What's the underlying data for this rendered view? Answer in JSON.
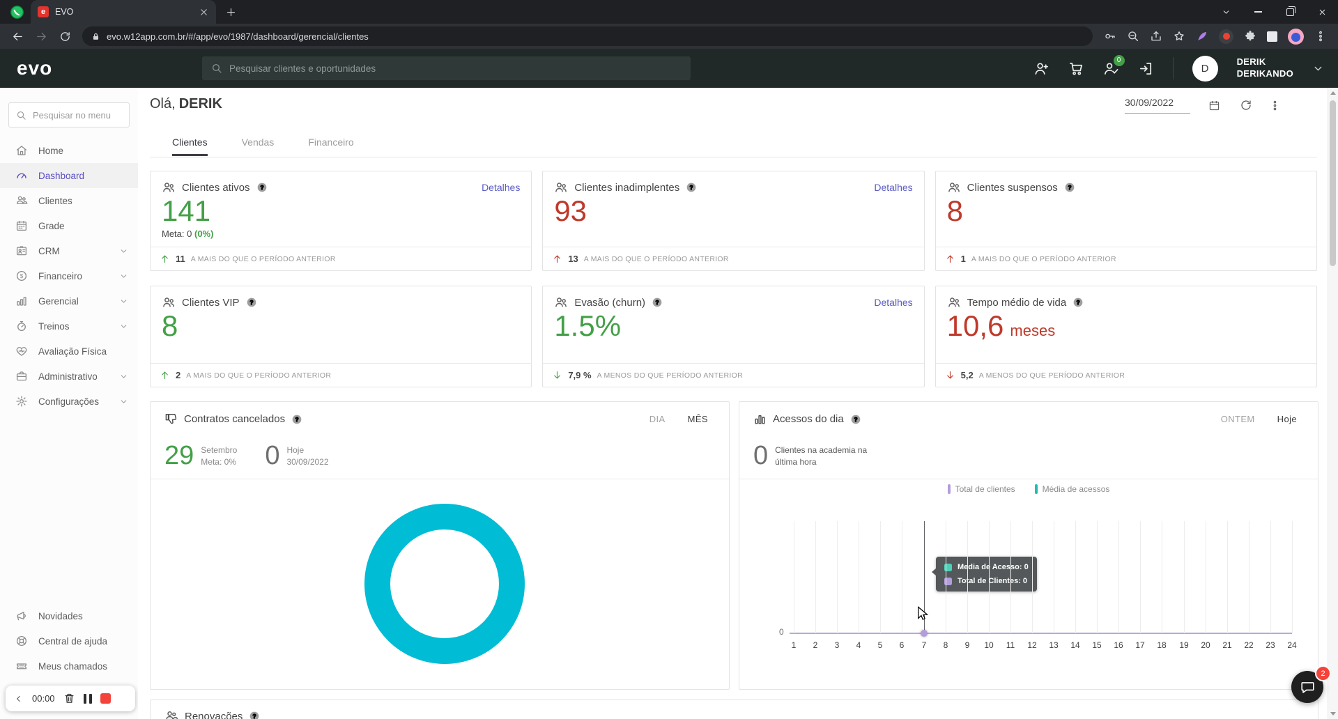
{
  "colors": {
    "accent_purple": "#5b4ec0",
    "link": "#5a5bc4",
    "green": "#43a047",
    "red": "#c0392b",
    "donut_teal": "#00bcd4",
    "series_purple": "#b39ddb",
    "series_teal": "#23bdb0",
    "header_dark": "#202927",
    "chrome_dark": "#1e2023"
  },
  "browser": {
    "tab_title": "EVO",
    "favicon_letter": "e",
    "url": "evo.w12app.com.br/#/app/evo/1987/dashboard/gerencial/clientes"
  },
  "app_header": {
    "logo": "evo",
    "search_placeholder": "Pesquisar clientes e oportunidades",
    "notifications_badge": "0",
    "user_initial": "D",
    "user_name_line1": "DERIK",
    "user_name_line2": "DERIKANDO"
  },
  "sidebar": {
    "search_placeholder": "Pesquisar no menu",
    "items": [
      {
        "label": "Home",
        "icon": "home",
        "chevron": false,
        "active": false
      },
      {
        "label": "Dashboard",
        "icon": "gauge",
        "chevron": false,
        "active": true
      },
      {
        "label": "Clientes",
        "icon": "people",
        "chevron": false,
        "active": false
      },
      {
        "label": "Grade",
        "icon": "calendar",
        "chevron": false,
        "active": false
      },
      {
        "label": "CRM",
        "icon": "idcard",
        "chevron": true,
        "active": false
      },
      {
        "label": "Financeiro",
        "icon": "dollar",
        "chevron": true,
        "active": false
      },
      {
        "label": "Gerencial",
        "icon": "bars",
        "chevron": true,
        "active": false
      },
      {
        "label": "Treinos",
        "icon": "stopwatch",
        "chevron": true,
        "active": false
      },
      {
        "label": "Avaliação Física",
        "icon": "heart",
        "chevron": false,
        "active": false
      },
      {
        "label": "Administrativo",
        "icon": "briefcase",
        "chevron": true,
        "active": false
      },
      {
        "label": "Configurações",
        "icon": "gear",
        "chevron": true,
        "active": false
      }
    ],
    "footer_items": [
      {
        "label": "Novidades",
        "icon": "megaphone"
      },
      {
        "label": "Central de ajuda",
        "icon": "lifebuoy"
      },
      {
        "label": "Meus chamados",
        "icon": "ticket"
      }
    ],
    "timer": {
      "time": "00:00"
    }
  },
  "main": {
    "greeting_prefix": "Olá,",
    "greeting_name": "DERIK",
    "date_value": "30/09/2022",
    "tabs": [
      {
        "label": "Clientes",
        "active": true
      },
      {
        "label": "Vendas",
        "active": false
      },
      {
        "label": "Financeiro",
        "active": false
      }
    ],
    "metric_cards": [
      {
        "title": "Clientes ativos",
        "link": "Detalhes",
        "value": "141",
        "value_color": "green",
        "meta_label": "Meta: 0",
        "meta_pct": "(0%)",
        "trend": {
          "dir": "up",
          "color": "green",
          "value": "11",
          "text": "A MAIS DO QUE O PERÍODO ANTERIOR"
        }
      },
      {
        "title": "Clientes inadimplentes",
        "link": "Detalhes",
        "value": "93",
        "value_color": "red",
        "trend": {
          "dir": "up",
          "color": "red",
          "value": "13",
          "text": "A MAIS DO QUE O PERÍODO ANTERIOR"
        }
      },
      {
        "title": "Clientes suspensos",
        "value": "8",
        "value_color": "red",
        "trend": {
          "dir": "up",
          "color": "red",
          "value": "1",
          "text": "A MAIS DO QUE O PERÍODO ANTERIOR"
        }
      },
      {
        "title": "Clientes VIP",
        "value": "8",
        "value_color": "green",
        "trend": {
          "dir": "up",
          "color": "green",
          "value": "2",
          "text": "A MAIS DO QUE O PERÍODO ANTERIOR"
        }
      },
      {
        "title": "Evasão (churn)",
        "link": "Detalhes",
        "value": "1.5%",
        "value_color": "green",
        "trend": {
          "dir": "down",
          "color": "green",
          "value": "7,9 %",
          "text": "A MENOS DO QUE PERÍODO ANTERIOR"
        }
      },
      {
        "title": "Tempo médio de vida",
        "value": "10,6",
        "value_suffix": "meses",
        "value_color": "red",
        "trend": {
          "dir": "down",
          "color": "red",
          "value": "5,2",
          "text": "A MENOS DO QUE PERÍODO ANTERIOR"
        }
      }
    ],
    "contratos": {
      "title": "Contratos cancelados",
      "toggle": [
        {
          "label": "DIA",
          "active": false
        },
        {
          "label": "MÊS",
          "active": true
        }
      ],
      "stats": [
        {
          "value": "29",
          "color": "green",
          "line1": "Setembro",
          "line2": "Meta: 0%"
        },
        {
          "value": "0",
          "color": "gray",
          "line1": "Hoje",
          "line2": "30/09/2022"
        }
      ]
    },
    "acessos": {
      "title": "Acessos do dia",
      "toggle": [
        {
          "label": "ONTEM",
          "active": false
        },
        {
          "label": "Hoje",
          "active": true
        }
      ],
      "stat_value": "0",
      "stat_caption_line1": "Clientes na academia na",
      "stat_caption_line2": "última hora",
      "legend": [
        {
          "label": "Total de clientes",
          "color": "#b39ddb"
        },
        {
          "label": "Média de acessos",
          "color": "#23bdb0"
        }
      ],
      "tooltip": [
        {
          "label": "Media de Acesso: 0",
          "color": "#4dd0b8"
        },
        {
          "label": "Total de Clientes: 0",
          "color": "#b39ddb"
        }
      ],
      "y_tick": "0",
      "x_ticks": [
        "1",
        "2",
        "3",
        "4",
        "5",
        "6",
        "7",
        "8",
        "9",
        "10",
        "11",
        "12",
        "13",
        "14",
        "15",
        "16",
        "17",
        "18",
        "19",
        "20",
        "21",
        "22",
        "23",
        "24"
      ],
      "hover_tick_index": 6
    },
    "renovacoes": {
      "title": "Renovações"
    }
  },
  "chat": {
    "badge": "2"
  },
  "chart_data": [
    {
      "type": "pie",
      "title": "Contratos cancelados (donut)",
      "values": [
        100
      ],
      "labels": [
        "cancelados"
      ],
      "colors": [
        "#00bcd4"
      ]
    },
    {
      "type": "line",
      "title": "Acessos do dia",
      "x": [
        1,
        2,
        3,
        4,
        5,
        6,
        7,
        8,
        9,
        10,
        11,
        12,
        13,
        14,
        15,
        16,
        17,
        18,
        19,
        20,
        21,
        22,
        23,
        24
      ],
      "series": [
        {
          "name": "Total de clientes",
          "values": [
            0,
            0,
            0,
            0,
            0,
            0,
            0,
            0,
            0,
            0,
            0,
            0,
            0,
            0,
            0,
            0,
            0,
            0,
            0,
            0,
            0,
            0,
            0,
            0
          ]
        },
        {
          "name": "Média de acessos",
          "values": [
            0,
            0,
            0,
            0,
            0,
            0,
            0,
            0,
            0,
            0,
            0,
            0,
            0,
            0,
            0,
            0,
            0,
            0,
            0,
            0,
            0,
            0,
            0,
            0
          ]
        }
      ],
      "ylim": [
        0,
        1
      ],
      "grid": "vertical",
      "legend_position": "top"
    }
  ]
}
